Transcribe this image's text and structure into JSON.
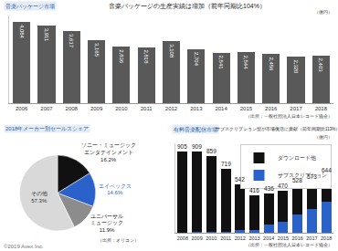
{
  "copyright": "©2019 Avex Inc.",
  "chart_data": [
    {
      "type": "bar",
      "header": "音楽パッケージ市場",
      "title": "音楽パッケージの生産実績は増加（前年同期比104%）",
      "unit_label": "（億円）",
      "source": "（出所：一般社団法人日本レコード協会）",
      "categories": [
        "2006",
        "2007",
        "2008",
        "2009",
        "2010",
        "2011",
        "2012",
        "2013",
        "2014",
        "2015",
        "2016",
        "2017",
        "2018"
      ],
      "values": [
        4084,
        3911,
        3617,
        3165,
        2836,
        2818,
        3108,
        2704,
        2541,
        2544,
        2456,
        2320,
        2403
      ],
      "value_labels": [
        "4,084",
        "3,911",
        "3,617",
        "3,165",
        "2,836",
        "2,818",
        "3,108",
        "2,704",
        "2,541",
        "2,544",
        "2,456",
        "2,320",
        "2,403"
      ],
      "color": "#595959",
      "ylim": [
        0,
        4400
      ],
      "data_labels": true,
      "tick_labels": "x",
      "grid": false
    },
    {
      "type": "pie",
      "header": "2018年メーカー別セールスシェア",
      "source": "（出所：オリコン）",
      "categories": [
        "ソニー・ミュージック\nエンタテインメント",
        "エイベックス",
        "ユニバーサル\nミュージック",
        "その他"
      ],
      "values": [
        16.2,
        14.6,
        11.9,
        57.3
      ],
      "value_labels": [
        "16.2%",
        "14.6%",
        "11.9%",
        "57.3%"
      ],
      "colors": [
        "#111111",
        "#2a62c9",
        "#8c8c8c",
        "#d9d9d9"
      ],
      "data_labels": true
    },
    {
      "type": "bar",
      "header": "有料音楽配信市場",
      "title": "サブスクリプション型が市場復活に貢献（前年同期比113%）",
      "unit_label": "（億円）",
      "source": "（出所：一般社団法人日本レコード協会）",
      "categories": [
        "2008",
        "2009",
        "2010",
        "2011",
        "2012",
        "2013",
        "2014",
        "2015",
        "2016",
        "2017",
        "2018"
      ],
      "series": [
        {
          "name": "サブスクリプション",
          "color": "#2a62c9",
          "values": [
            5,
            6,
            8,
            6,
            30,
            31,
            94,
            124,
            200,
            263,
            349
          ]
        },
        {
          "name": "ダウンロード他",
          "color": "#111111",
          "values": [
            900,
            903,
            851,
            713,
            512,
            385,
            342,
            346,
            328,
            310,
            295
          ]
        }
      ],
      "totals": [
        905,
        909,
        859,
        719,
        542,
        416,
        436,
        470,
        528,
        573,
        644
      ],
      "ylim": [
        0,
        1000
      ],
      "stacked": true,
      "data_labels": true,
      "tick_labels": "x",
      "legend": "top-right",
      "grid": false
    }
  ]
}
